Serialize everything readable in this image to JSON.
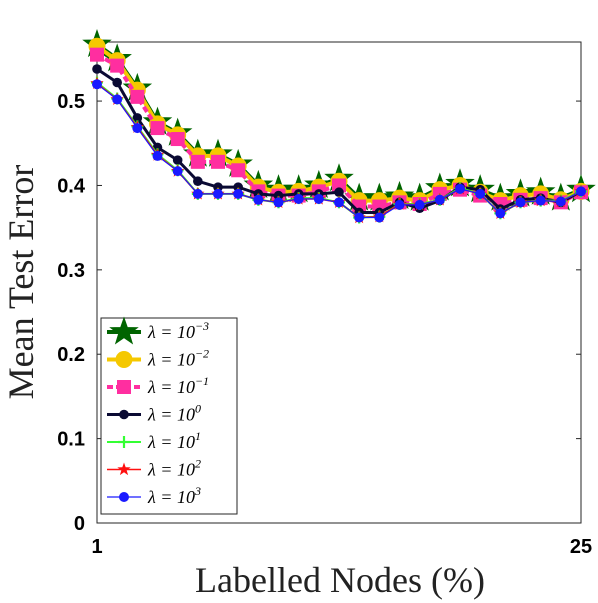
{
  "chart_data": {
    "type": "line",
    "xlabel": "Labelled Nodes (%)",
    "ylabel": "Mean Test Error",
    "xlim": [
      1,
      25
    ],
    "ylim": [
      0,
      0.57
    ],
    "x_ticks": [
      1,
      25
    ],
    "y_ticks": [
      0,
      0.1,
      0.2,
      0.3,
      0.4,
      0.5
    ],
    "y_tick_labels": [
      "0",
      "0.1",
      "0.2",
      "0.3",
      "0.4",
      "0.5"
    ],
    "x_tick_labels": [
      "1",
      "25"
    ],
    "legend_position": "bottom-left",
    "grid": false,
    "x": [
      1,
      2,
      3,
      4,
      5,
      6,
      7,
      8,
      9,
      10,
      11,
      12,
      13,
      14,
      15,
      16,
      17,
      18,
      19,
      20,
      21,
      22,
      23,
      24,
      25
    ],
    "series": [
      {
        "name": "λ = 10⁻³",
        "label_base": "λ = 10",
        "label_exp": "−3",
        "color": "#006400",
        "marker": "star-big",
        "values": [
          0.567,
          0.55,
          0.515,
          0.475,
          0.462,
          0.437,
          0.437,
          0.425,
          0.4,
          0.395,
          0.395,
          0.4,
          0.408,
          0.385,
          0.385,
          0.387,
          0.385,
          0.397,
          0.402,
          0.395,
          0.385,
          0.39,
          0.392,
          0.385,
          0.395
        ]
      },
      {
        "name": "λ = 10⁻²",
        "label_base": "λ = 10",
        "label_exp": "−2",
        "color": "#f5c800",
        "marker": "circle",
        "values": [
          0.565,
          0.548,
          0.513,
          0.473,
          0.46,
          0.435,
          0.435,
          0.423,
          0.398,
          0.392,
          0.393,
          0.398,
          0.405,
          0.382,
          0.382,
          0.385,
          0.382,
          0.395,
          0.4,
          0.392,
          0.382,
          0.388,
          0.39,
          0.383,
          0.393
        ]
      },
      {
        "name": "λ = 10⁻¹",
        "label_base": "λ = 10",
        "label_exp": "−1",
        "color": "#ff2ea0",
        "marker": "square",
        "values": [
          0.555,
          0.542,
          0.505,
          0.468,
          0.455,
          0.428,
          0.428,
          0.418,
          0.393,
          0.388,
          0.388,
          0.393,
          0.4,
          0.375,
          0.375,
          0.38,
          0.378,
          0.39,
          0.395,
          0.388,
          0.378,
          0.383,
          0.385,
          0.38,
          0.392
        ]
      },
      {
        "name": "λ = 10⁰",
        "label_base": "λ = 10",
        "label_exp": "0",
        "color": "#0a0a33",
        "marker": "dot",
        "values": [
          0.538,
          0.522,
          0.48,
          0.445,
          0.43,
          0.405,
          0.398,
          0.398,
          0.39,
          0.388,
          0.39,
          0.39,
          0.392,
          0.368,
          0.368,
          0.38,
          0.373,
          0.382,
          0.398,
          0.395,
          0.372,
          0.383,
          0.385,
          0.38,
          0.393
        ]
      },
      {
        "name": "λ = 10¹",
        "label_base": "λ = 10",
        "label_exp": "1",
        "color": "#33ff33",
        "marker": "plus",
        "values": [
          0.522,
          0.503,
          0.47,
          0.437,
          0.418,
          0.39,
          0.39,
          0.39,
          0.383,
          0.38,
          0.385,
          0.385,
          0.38,
          0.362,
          0.363,
          0.378,
          0.378,
          0.383,
          0.397,
          0.39,
          0.367,
          0.38,
          0.382,
          0.382,
          0.393
        ]
      },
      {
        "name": "λ = 10²",
        "label_base": "λ = 10",
        "label_exp": "2",
        "color": "#ff1010",
        "marker": "star-small",
        "values": [
          0.521,
          0.502,
          0.469,
          0.436,
          0.417,
          0.39,
          0.39,
          0.39,
          0.383,
          0.38,
          0.384,
          0.384,
          0.38,
          0.362,
          0.363,
          0.378,
          0.377,
          0.383,
          0.396,
          0.39,
          0.367,
          0.38,
          0.382,
          0.381,
          0.393
        ]
      },
      {
        "name": "λ = 10³",
        "label_base": "λ = 10",
        "label_exp": "3",
        "color": "#1a1aff",
        "marker": "dot-blue",
        "values": [
          0.52,
          0.502,
          0.468,
          0.435,
          0.417,
          0.39,
          0.39,
          0.39,
          0.383,
          0.38,
          0.384,
          0.384,
          0.38,
          0.362,
          0.362,
          0.377,
          0.377,
          0.383,
          0.396,
          0.39,
          0.367,
          0.38,
          0.382,
          0.381,
          0.393
        ]
      }
    ]
  }
}
